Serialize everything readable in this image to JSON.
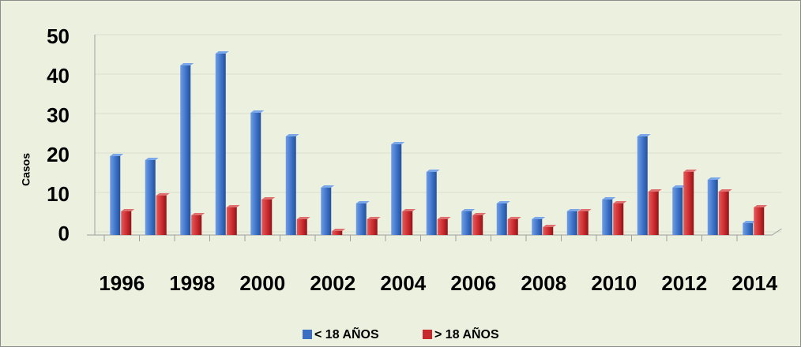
{
  "chart_data": {
    "type": "bar",
    "y_label": "Casos",
    "categories": [
      "1996",
      null,
      "1998",
      null,
      "2000",
      null,
      "2002",
      null,
      "2004",
      null,
      "2006",
      null,
      "2008",
      null,
      "2010",
      null,
      "2012",
      null,
      "2014"
    ],
    "series": [
      {
        "name": "< 18 AÑOS",
        "color": "#3a6fc4",
        "values": [
          20,
          19,
          43,
          46,
          31,
          25,
          12,
          8,
          23,
          16,
          6,
          8,
          4,
          6,
          9,
          25,
          12,
          14,
          3
        ]
      },
      {
        "name": "> 18 AÑOS",
        "color": "#c8282c",
        "values": [
          6,
          10,
          5,
          7,
          9,
          4,
          1,
          4,
          6,
          4,
          5,
          4,
          2,
          6,
          8,
          11,
          16,
          11,
          7
        ]
      }
    ],
    "ylim": [
      0,
      50
    ],
    "yticks": [
      0,
      10,
      20,
      30,
      40,
      50
    ],
    "grid": true,
    "legend": "bottom"
  }
}
